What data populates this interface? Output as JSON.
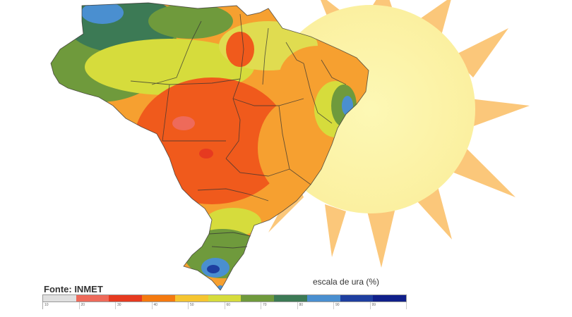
{
  "source_label": "Fonte: INMET",
  "scale": {
    "title": "escala de ura (%)",
    "ticks": [
      "10",
      "20",
      "30",
      "40",
      "50",
      "60",
      "70",
      "80",
      "90",
      "99"
    ],
    "colors": [
      "#e0e0e0",
      "#ee6a5a",
      "#e63a20",
      "#f47a10",
      "#f5c530",
      "#d6dc3c",
      "#6f9a3c",
      "#3c7a55",
      "#4a8fd0",
      "#1e3fa0",
      "#10208a"
    ]
  },
  "colors": {
    "sun_rays": "#fbc77a",
    "sun_disc": "#fbf3a0",
    "dry": "#f05a1c",
    "moderate": "#f6a030",
    "humid_yellow": "#e0dc50",
    "humid_green": "#6f9a3c",
    "very_humid": "#4a8fd0"
  },
  "icons": [
    "sun-icon"
  ]
}
